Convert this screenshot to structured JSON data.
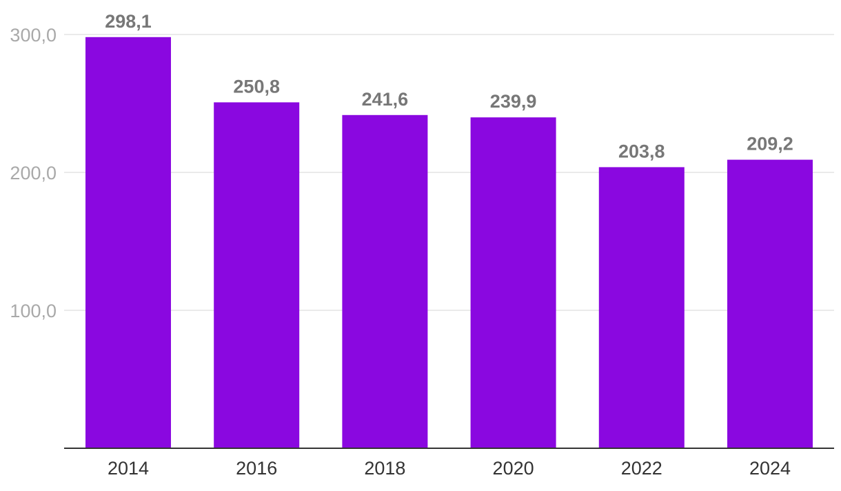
{
  "chart_data": {
    "type": "bar",
    "categories": [
      "2014",
      "2016",
      "2018",
      "2020",
      "2022",
      "2024"
    ],
    "values": [
      298.1,
      250.8,
      241.6,
      239.9,
      203.8,
      209.2
    ],
    "data_labels": [
      "298,1",
      "250,8",
      "241,6",
      "239,9",
      "203,8",
      "209,2"
    ],
    "y_ticks": [
      100,
      200,
      300
    ],
    "y_tick_labels": [
      "100,0",
      "200,0",
      "300,0"
    ],
    "ylim": [
      0,
      300
    ],
    "grid": true,
    "bar_color": "#8a08e0",
    "title": "",
    "xlabel": "",
    "ylabel": ""
  }
}
